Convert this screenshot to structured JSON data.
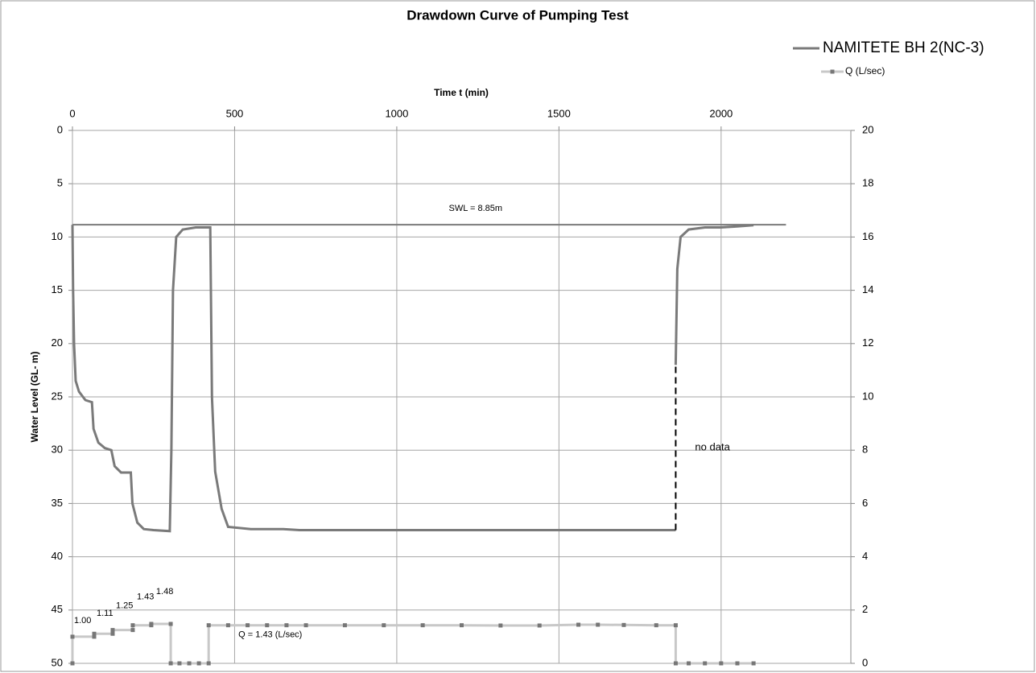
{
  "chart_data": {
    "type": "line",
    "title": "Drawdown Curve of Pumping Test",
    "x_label": "Time t (min)",
    "y_label": "Water Level (GL- m)",
    "xlim": [
      0,
      2400
    ],
    "xticks": [
      0,
      500,
      1000,
      1500,
      2000
    ],
    "ylim": [
      0,
      50
    ],
    "yticks": [
      0,
      5,
      10,
      15,
      20,
      25,
      30,
      35,
      40,
      45,
      50
    ],
    "y_inverted": true,
    "y2lim": [
      0,
      20
    ],
    "y2ticks": [
      0,
      2,
      4,
      6,
      8,
      10,
      12,
      14,
      16,
      18,
      20
    ],
    "grid": true,
    "legend": "top-right",
    "series": [
      {
        "name": "NAMITETE BH 2(NC-3)",
        "color": "#7a7a7a",
        "axis": "y",
        "x": [
          0,
          2,
          5,
          10,
          20,
          40,
          60,
          65,
          80,
          100,
          120,
          130,
          150,
          180,
          185,
          200,
          220,
          250,
          300,
          305,
          310,
          320,
          340,
          380,
          425,
          430,
          440,
          460,
          480,
          550,
          650,
          700,
          1860,
          null,
          1860,
          1865,
          1875,
          1900,
          1950,
          2000,
          2050,
          2100
        ],
        "values": [
          8.85,
          15,
          20,
          23.5,
          24.5,
          25.3,
          25.5,
          28,
          29.3,
          29.8,
          30,
          31.5,
          32.1,
          32.1,
          35,
          36.8,
          37.4,
          37.5,
          37.6,
          30,
          15,
          10,
          9.3,
          9.1,
          9.1,
          25,
          32,
          35.5,
          37.2,
          37.4,
          37.4,
          37.5,
          37.5,
          null,
          22,
          13,
          10,
          9.3,
          9.1,
          9.1,
          9,
          8.9
        ]
      },
      {
        "name": "Q (L/sec)",
        "color": "#c8c8c8",
        "marker_color": "#777777",
        "axis": "y2",
        "x": [
          0,
          0,
          67,
          67,
          124,
          124,
          186,
          186,
          243,
          243,
          303,
          303,
          330,
          360,
          390,
          420,
          420,
          480,
          540,
          600,
          660,
          720,
          840,
          960,
          1080,
          1200,
          1320,
          1440,
          1560,
          1620,
          1700,
          1800,
          1860,
          1860,
          1900,
          1950,
          2000,
          2050,
          2100
        ],
        "values": [
          0,
          1.0,
          1.0,
          1.11,
          1.11,
          1.25,
          1.25,
          1.43,
          1.43,
          1.48,
          1.48,
          0,
          0,
          0,
          0,
          0,
          1.43,
          1.43,
          1.43,
          1.43,
          1.43,
          1.43,
          1.43,
          1.43,
          1.43,
          1.43,
          1.42,
          1.42,
          1.45,
          1.45,
          1.44,
          1.43,
          1.43,
          0,
          0,
          0,
          0,
          0,
          0
        ]
      }
    ],
    "swl": {
      "label": "SWL = 8.85m",
      "value": 8.85,
      "x": [
        0,
        2200
      ]
    },
    "gap_label": "no data",
    "q_labels": [
      {
        "x": 0,
        "value": 1.0,
        "label": "1.00"
      },
      {
        "x": 67,
        "value": 1.11,
        "label": "1.11"
      },
      {
        "x": 124,
        "value": 1.25,
        "label": "1.25"
      },
      {
        "x": 186,
        "value": 1.43,
        "label": "1.43"
      },
      {
        "x": 243,
        "value": 1.48,
        "label": "1.48"
      }
    ],
    "q_annotation": {
      "x": 610,
      "value": 1.43,
      "label": "Q = 1.43 (L/sec)"
    }
  }
}
